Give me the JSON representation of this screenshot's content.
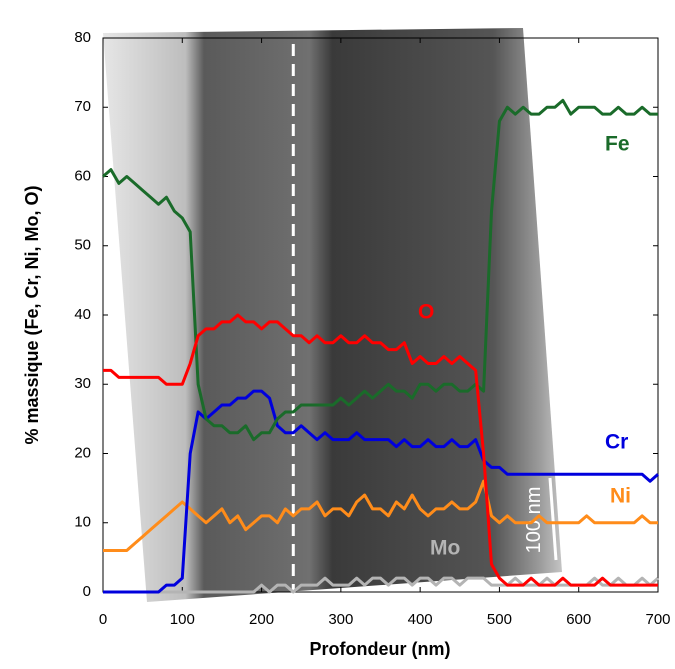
{
  "chart_data": {
    "type": "line",
    "xlabel": "Profondeur (nm)",
    "ylabel": "% massique (Fe, Cr, Ni, Mo, O)",
    "scale_bar_label": "100 nm",
    "reference_x": 240,
    "xlim": [
      0,
      700
    ],
    "xticks": [
      0,
      100,
      200,
      300,
      400,
      500,
      600,
      700
    ],
    "ylim": [
      0,
      80
    ],
    "yticks": [
      0,
      10,
      20,
      30,
      40,
      50,
      60,
      70,
      80
    ],
    "x": [
      0,
      10,
      20,
      30,
      40,
      50,
      60,
      70,
      80,
      90,
      100,
      110,
      120,
      130,
      140,
      150,
      160,
      170,
      180,
      190,
      200,
      210,
      220,
      230,
      240,
      250,
      260,
      270,
      280,
      290,
      300,
      310,
      320,
      330,
      340,
      350,
      360,
      370,
      380,
      390,
      400,
      410,
      420,
      430,
      440,
      450,
      460,
      470,
      480,
      490,
      500,
      510,
      520,
      530,
      540,
      550,
      560,
      570,
      580,
      590,
      600,
      610,
      620,
      630,
      640,
      650,
      660,
      670,
      680,
      690,
      700
    ],
    "series": [
      {
        "name": "Fe",
        "color": "#1a6b2a",
        "values": [
          60,
          61,
          59,
          60,
          59,
          58,
          57,
          56,
          57,
          55,
          54,
          52,
          30,
          25,
          24,
          24,
          23,
          23,
          24,
          22,
          23,
          23,
          25,
          26,
          26,
          27,
          27,
          27,
          27,
          27,
          28,
          27,
          28,
          29,
          28,
          29,
          30,
          29,
          29,
          28,
          30,
          30,
          29,
          30,
          30,
          29,
          29,
          30,
          29,
          55,
          68,
          70,
          69,
          70,
          69,
          69,
          70,
          70,
          71,
          69,
          70,
          70,
          70,
          69,
          69,
          70,
          69,
          69,
          70,
          69,
          69
        ]
      },
      {
        "name": "O",
        "color": "#ff0000",
        "values": [
          32,
          32,
          31,
          31,
          31,
          31,
          31,
          31,
          30,
          30,
          30,
          33,
          37,
          38,
          38,
          39,
          39,
          40,
          39,
          39,
          38,
          39,
          39,
          38,
          37,
          37,
          36,
          37,
          36,
          36,
          37,
          36,
          36,
          37,
          36,
          36,
          35,
          35,
          36,
          33,
          34,
          33,
          33,
          34,
          33,
          34,
          33,
          32,
          20,
          4,
          2,
          1,
          1,
          1,
          2,
          1,
          1,
          1,
          2,
          1,
          1,
          1,
          1,
          2,
          1,
          1,
          1,
          1,
          1,
          1,
          1
        ]
      },
      {
        "name": "Cr",
        "color": "#0000dd",
        "values": [
          0,
          0,
          0,
          0,
          0,
          0,
          0,
          0,
          1,
          1,
          2,
          20,
          26,
          25,
          26,
          27,
          27,
          28,
          28,
          29,
          29,
          28,
          24,
          23,
          23,
          24,
          23,
          22,
          23,
          22,
          22,
          22,
          23,
          22,
          22,
          22,
          22,
          21,
          22,
          21,
          21,
          22,
          21,
          21,
          22,
          21,
          21,
          22,
          19,
          18,
          18,
          17,
          17,
          17,
          17,
          17,
          17,
          17,
          17,
          17,
          17,
          17,
          17,
          17,
          17,
          17,
          17,
          17,
          17,
          16,
          17
        ]
      },
      {
        "name": "Ni",
        "color": "#ff8c1a",
        "values": [
          6,
          6,
          6,
          6,
          7,
          8,
          9,
          10,
          11,
          12,
          13,
          12,
          11,
          10,
          11,
          12,
          10,
          11,
          9,
          10,
          11,
          11,
          10,
          12,
          11,
          12,
          12,
          13,
          11,
          12,
          12,
          11,
          13,
          14,
          12,
          12,
          11,
          13,
          12,
          14,
          12,
          11,
          12,
          12,
          13,
          12,
          12,
          13,
          16,
          11,
          10,
          11,
          10,
          10,
          10,
          11,
          10,
          10,
          10,
          10,
          10,
          11,
          10,
          10,
          10,
          10,
          10,
          10,
          11,
          10,
          10
        ]
      },
      {
        "name": "Mo",
        "color": "#b4b4b4",
        "values": [
          0,
          0,
          0,
          0,
          0,
          0,
          0,
          0,
          0,
          0,
          0,
          0,
          0,
          0,
          0,
          0,
          0,
          0,
          0,
          0,
          1,
          0,
          1,
          1,
          0,
          1,
          1,
          1,
          2,
          1,
          1,
          1,
          2,
          1,
          2,
          2,
          1,
          2,
          2,
          1,
          2,
          2,
          1,
          2,
          2,
          1,
          2,
          2,
          2,
          1,
          1,
          1,
          2,
          1,
          1,
          1,
          2,
          1,
          1,
          1,
          1,
          1,
          2,
          1,
          1,
          2,
          1,
          1,
          2,
          1,
          2
        ]
      }
    ]
  }
}
